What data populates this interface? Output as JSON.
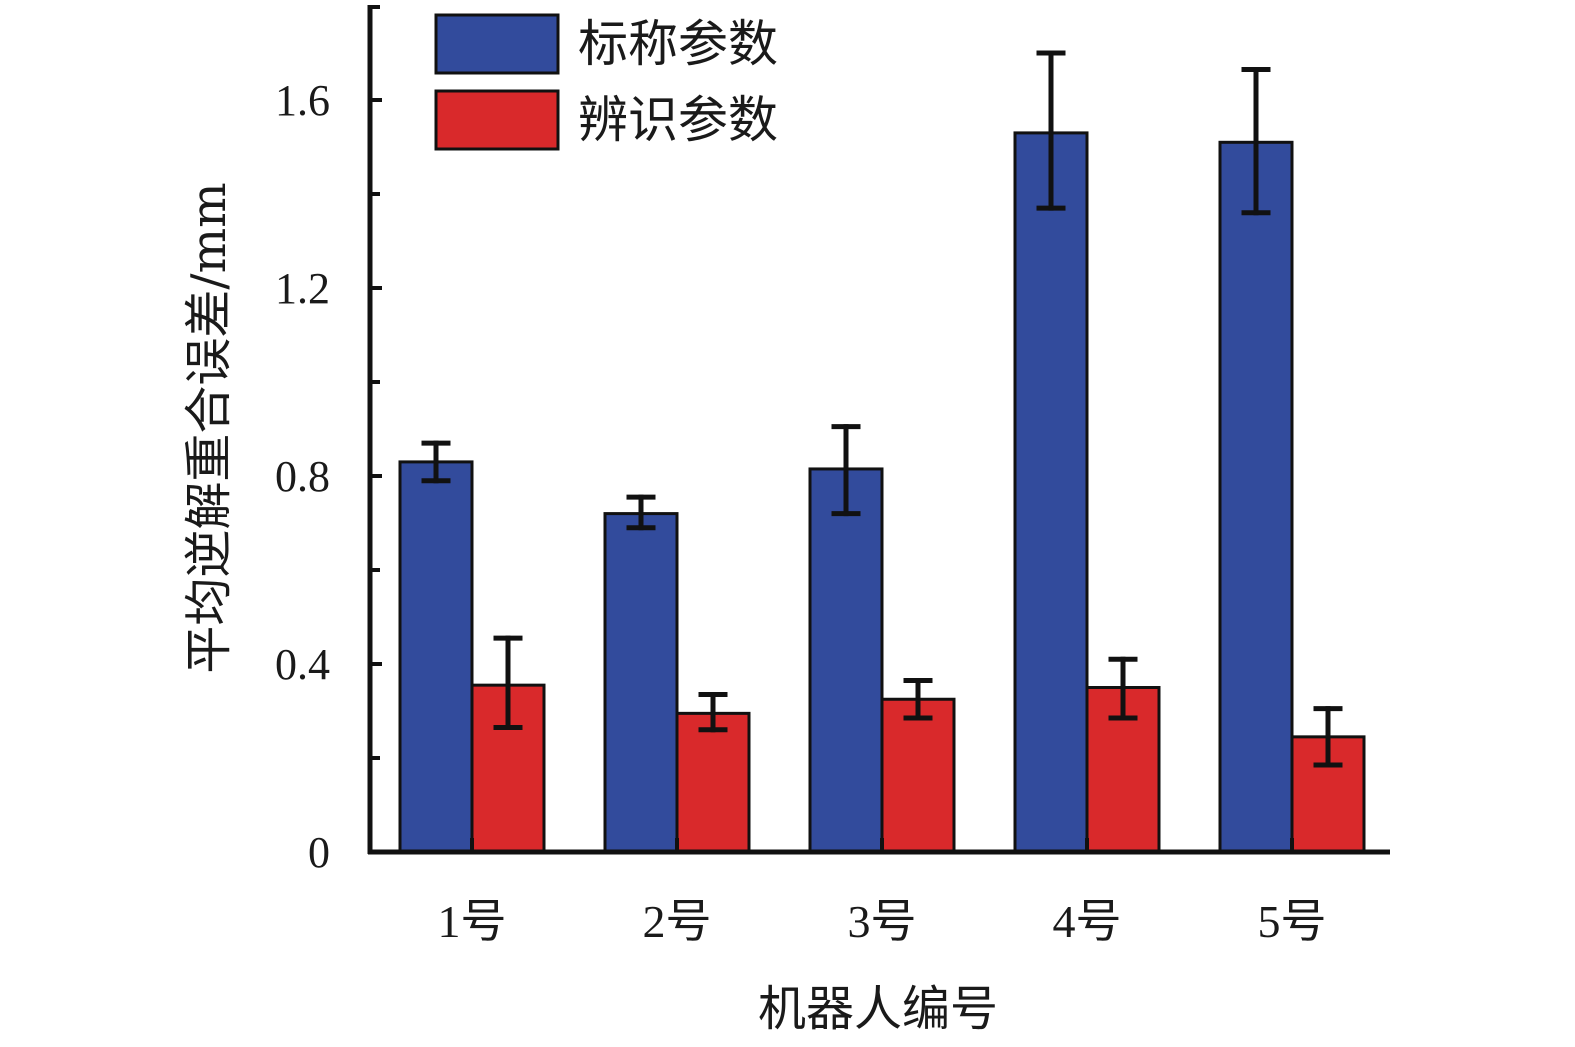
{
  "chart_data": {
    "type": "bar",
    "title": "",
    "xlabel": "机器人编号",
    "ylabel": "平均逆解重合误差/mm",
    "categories": [
      "1号",
      "2号",
      "3号",
      "4号",
      "5号"
    ],
    "ylim": [
      0,
      1.8
    ],
    "yticks": [
      0,
      0.4,
      0.8,
      1.2,
      1.6
    ],
    "ytick_labels": [
      "0",
      "0.4",
      "0.8",
      "1.2",
      "1.6"
    ],
    "minor_ticks": [
      0.2,
      0.6,
      1.0,
      1.4
    ],
    "grid": false,
    "legend_position": "top-left",
    "series": [
      {
        "name": "标称参数",
        "color": "#324b9c",
        "values": [
          0.83,
          0.72,
          0.815,
          1.53,
          1.51
        ],
        "error_low": [
          0.79,
          0.69,
          0.72,
          1.37,
          1.36
        ],
        "error_high": [
          0.87,
          0.755,
          0.905,
          1.7,
          1.665
        ]
      },
      {
        "name": "辨识参数",
        "color": "#d9292b",
        "values": [
          0.355,
          0.295,
          0.325,
          0.35,
          0.245
        ],
        "error_low": [
          0.265,
          0.26,
          0.285,
          0.285,
          0.185
        ],
        "error_high": [
          0.455,
          0.335,
          0.365,
          0.41,
          0.305
        ]
      }
    ]
  }
}
